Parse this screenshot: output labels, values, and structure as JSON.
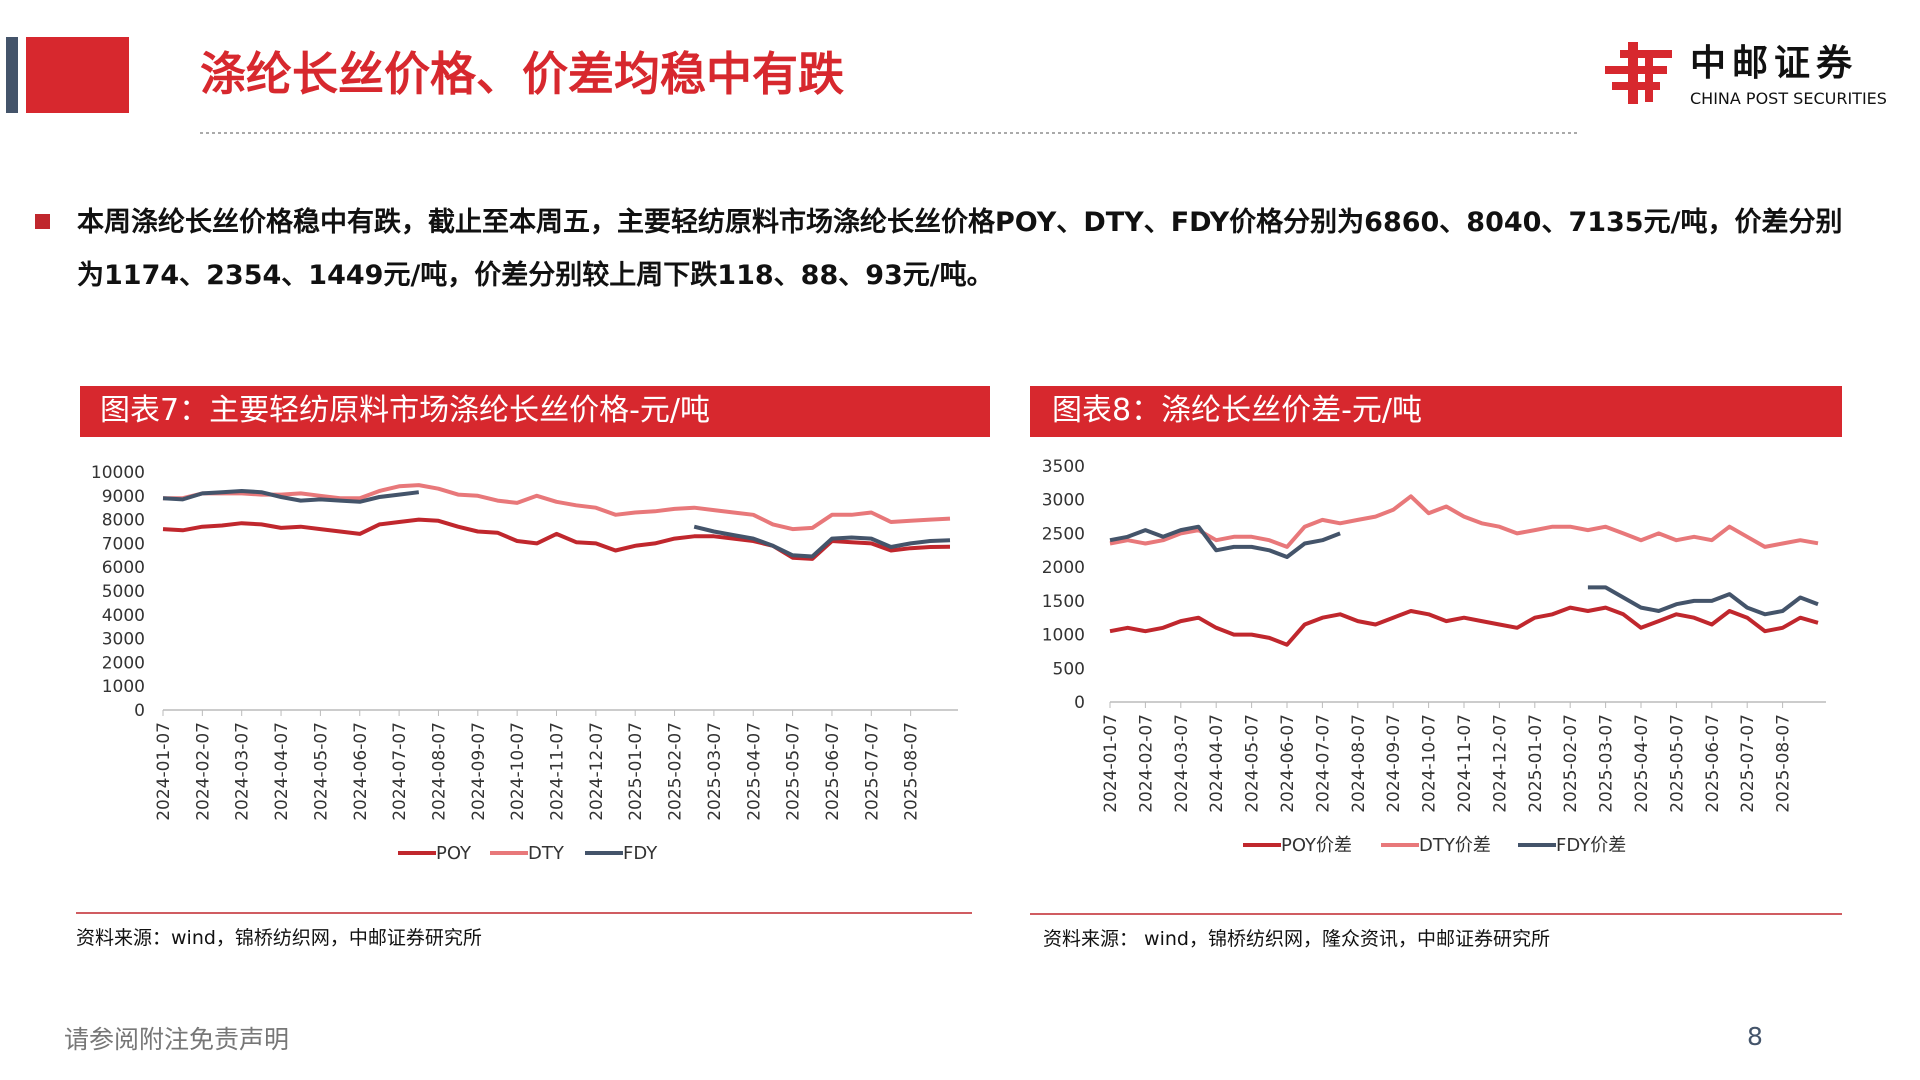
{
  "header": {
    "title": "涤纶长丝价格、价差均稳中有跌",
    "logo_cn": "中邮证券",
    "logo_en": "CHINA POST SECURITIES"
  },
  "body": {
    "text": "本周涤纶长丝价格稳中有跌，截止至本周五，主要轻纺原料市场涤纶长丝价格POY、DTY、FDY价格分别为6860、8040、7135元/吨，价差分别为1174、2354、1449元/吨，价差分别较上周下跌118、88、93元/吨。"
  },
  "chart_data": [
    {
      "type": "line",
      "title": "图表7：主要轻纺原料市场涤纶长丝价格-元/吨",
      "source": "资料来源：wind，锦桥纺织网，中邮证券研究所",
      "categories": [
        "2024-01-07",
        null,
        "2024-02-07",
        null,
        "2024-03-07",
        null,
        "2024-04-07",
        null,
        "2024-05-07",
        null,
        "2024-06-07",
        null,
        "2024-07-07",
        null,
        "2024-08-07",
        null,
        "2024-09-07",
        null,
        "2024-10-07",
        null,
        "2024-11-07",
        null,
        "2024-12-07",
        null,
        "2025-01-07",
        null,
        "2025-02-07",
        null,
        "2025-03-07",
        null,
        "2025-04-07",
        null,
        "2025-05-07",
        null,
        "2025-06-07",
        null,
        "2025-07-07",
        null,
        "2025-08-07",
        null,
        null
      ],
      "series": [
        {
          "name": "POY",
          "color": "#c0272d",
          "values": [
            7600,
            7550,
            7700,
            7750,
            7850,
            7800,
            7650,
            7700,
            7600,
            7500,
            7400,
            7800,
            7900,
            8000,
            7950,
            7700,
            7500,
            7450,
            7100,
            7000,
            7400,
            7050,
            7000,
            6700,
            6900,
            7000,
            7200,
            7300,
            7300,
            7200,
            7100,
            6900,
            6400,
            6350,
            7100,
            7050,
            7000,
            6700,
            6800,
            6850,
            6860
          ]
        },
        {
          "name": "DTY",
          "color": "#e8787a",
          "values": [
            8900,
            8900,
            9100,
            9100,
            9100,
            9050,
            9050,
            9100,
            9000,
            8900,
            8900,
            9200,
            9400,
            9450,
            9300,
            9050,
            9000,
            8800,
            8700,
            9000,
            8750,
            8600,
            8500,
            8200,
            8300,
            8350,
            8450,
            8500,
            8400,
            8300,
            8200,
            7800,
            7600,
            7650,
            8200,
            8200,
            8300,
            7900,
            7950,
            8000,
            8040
          ]
        },
        {
          "name": "FDY",
          "color": "#44546a",
          "values": [
            8900,
            8850,
            9100,
            9150,
            9200,
            9150,
            8950,
            8800,
            8850,
            8800,
            8750,
            8950,
            9050,
            9150,
            null,
            null,
            null,
            null,
            null,
            null,
            null,
            null,
            null,
            null,
            null,
            null,
            null,
            7700,
            7500,
            7350,
            7200,
            6900,
            6500,
            6450,
            7200,
            7250,
            7200,
            6850,
            7000,
            7100,
            7135
          ]
        }
      ],
      "ylim": [
        0,
        10000
      ],
      "yticks": [
        0,
        1000,
        2000,
        3000,
        4000,
        5000,
        6000,
        7000,
        8000,
        9000,
        10000
      ],
      "grid": false
    },
    {
      "type": "line",
      "title": "图表8：涤纶长丝价差-元/吨",
      "source": "资料来源： wind，锦桥纺织网，隆众资讯，中邮证券研究所",
      "categories": [
        "2024-01-07",
        null,
        "2024-02-07",
        null,
        "2024-03-07",
        null,
        "2024-04-07",
        null,
        "2024-05-07",
        null,
        "2024-06-07",
        null,
        "2024-07-07",
        null,
        "2024-08-07",
        null,
        "2024-09-07",
        null,
        "2024-10-07",
        null,
        "2024-11-07",
        null,
        "2024-12-07",
        null,
        "2025-01-07",
        null,
        "2025-02-07",
        null,
        "2025-03-07",
        null,
        "2025-04-07",
        null,
        "2025-05-07",
        null,
        "2025-06-07",
        null,
        "2025-07-07",
        null,
        "2025-08-07",
        null,
        null
      ],
      "series": [
        {
          "name": "POY价差",
          "color": "#c0272d",
          "values": [
            1050,
            1100,
            1050,
            1100,
            1200,
            1250,
            1100,
            1000,
            1000,
            950,
            850,
            1150,
            1250,
            1300,
            1200,
            1150,
            1250,
            1350,
            1300,
            1200,
            1250,
            1200,
            1150,
            1100,
            1250,
            1300,
            1400,
            1350,
            1400,
            1300,
            1100,
            1200,
            1300,
            1250,
            1150,
            1350,
            1250,
            1050,
            1100,
            1250,
            1174
          ]
        },
        {
          "name": "DTY价差",
          "color": "#e8787a",
          "values": [
            2350,
            2400,
            2350,
            2400,
            2500,
            2550,
            2400,
            2450,
            2450,
            2400,
            2300,
            2600,
            2700,
            2650,
            2700,
            2750,
            2850,
            3050,
            2800,
            2900,
            2750,
            2650,
            2600,
            2500,
            2550,
            2600,
            2600,
            2550,
            2600,
            2500,
            2400,
            2500,
            2400,
            2450,
            2400,
            2600,
            2450,
            2300,
            2350,
            2400,
            2354
          ]
        },
        {
          "name": "FDY价差",
          "color": "#44546a",
          "values": [
            2400,
            2450,
            2550,
            2450,
            2550,
            2600,
            2250,
            2300,
            2300,
            2250,
            2150,
            2350,
            2400,
            2500,
            null,
            null,
            null,
            null,
            null,
            null,
            null,
            null,
            null,
            null,
            null,
            null,
            null,
            1700,
            1700,
            1550,
            1400,
            1350,
            1450,
            1500,
            1500,
            1600,
            1400,
            1300,
            1350,
            1550,
            1449
          ]
        }
      ],
      "ylim": [
        0,
        3500
      ],
      "yticks": [
        0,
        500,
        1000,
        1500,
        2000,
        2500,
        3000,
        3500
      ],
      "grid": false
    }
  ],
  "footer": {
    "disclaimer": "请参阅附注免责声明",
    "page": 8
  }
}
